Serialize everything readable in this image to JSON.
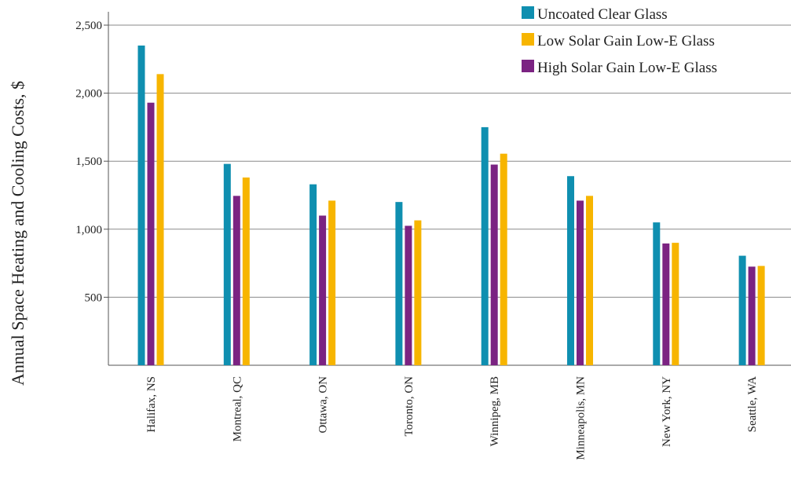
{
  "chart_data": {
    "type": "bar",
    "title": "",
    "xlabel": "",
    "ylabel": "Annual Space Heating and Cooling Costs, $",
    "ylim": [
      0,
      2500
    ],
    "yticks": [
      500,
      1000,
      1500,
      2000,
      2500
    ],
    "ytick_labels": [
      "500",
      "1,000",
      "1,500",
      "2,000",
      "2,500"
    ],
    "grid": "horizontal",
    "legend_position": "top-right",
    "categories": [
      "Halifax, NS",
      "Montreal, QC",
      "Ottawa, ON",
      "Toronto, ON",
      "Winnipeg, MB",
      "Minneapolis, MN",
      "New York, NY",
      "Seattle, WA"
    ],
    "series": [
      {
        "name": "Uncoated Clear Glass",
        "color": "#0F8FB0",
        "values": [
          2350,
          1480,
          1330,
          1200,
          1750,
          1390,
          1050,
          805
        ]
      },
      {
        "name": "High Solar Gain Low-E Glass",
        "color": "#7B2382",
        "values": [
          1930,
          1245,
          1100,
          1025,
          1475,
          1210,
          895,
          725
        ]
      },
      {
        "name": "Low Solar Gain Low-E Glass",
        "color": "#F7B500",
        "values": [
          2140,
          1380,
          1210,
          1065,
          1555,
          1245,
          900,
          730
        ]
      }
    ],
    "legend_order": [
      "Uncoated Clear Glass",
      "Low Solar Gain Low-E Glass",
      "High Solar Gain Low-E Glass"
    ]
  }
}
